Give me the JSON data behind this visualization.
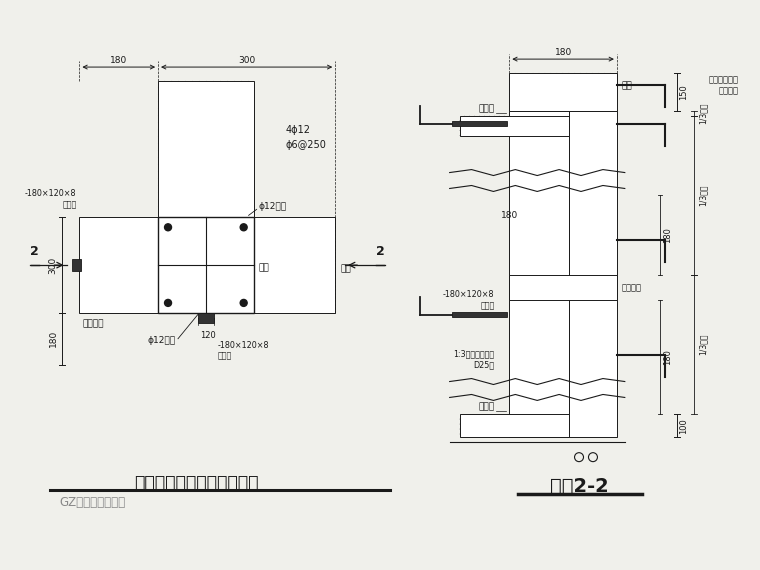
{
  "bg_color": "#f0f0eb",
  "line_color": "#1a1a1a",
  "hatch_color": "#777777",
  "title1": "新增构造柱与墙体连接详图",
  "subtitle1": "GZ－阴角加构造柱",
  "title2": "剖面2-2",
  "dim_180": "180",
  "dim_300": "300",
  "dim_150": "150",
  "dim_100": "100",
  "label_4phi12": "4φ12",
  "label_phi6": "φ6@250",
  "label_phi12_rod": "φ12拉杆",
  "label_ring_beam": "圈梁",
  "label_steel_plate": "-180×120×8\n鉢板垫",
  "label_concrete_key": "混凝土键",
  "label_floor_bot": "楼板底",
  "label_floor_surf": "楼板面",
  "label_grout": "1:3水泥沙浆填实\nD25孔",
  "label_note": "有贯通拉杆时\n此板取消",
  "label_concrete_key2": "混凝土键",
  "label_h13": "1/3层高",
  "section_num": "2"
}
